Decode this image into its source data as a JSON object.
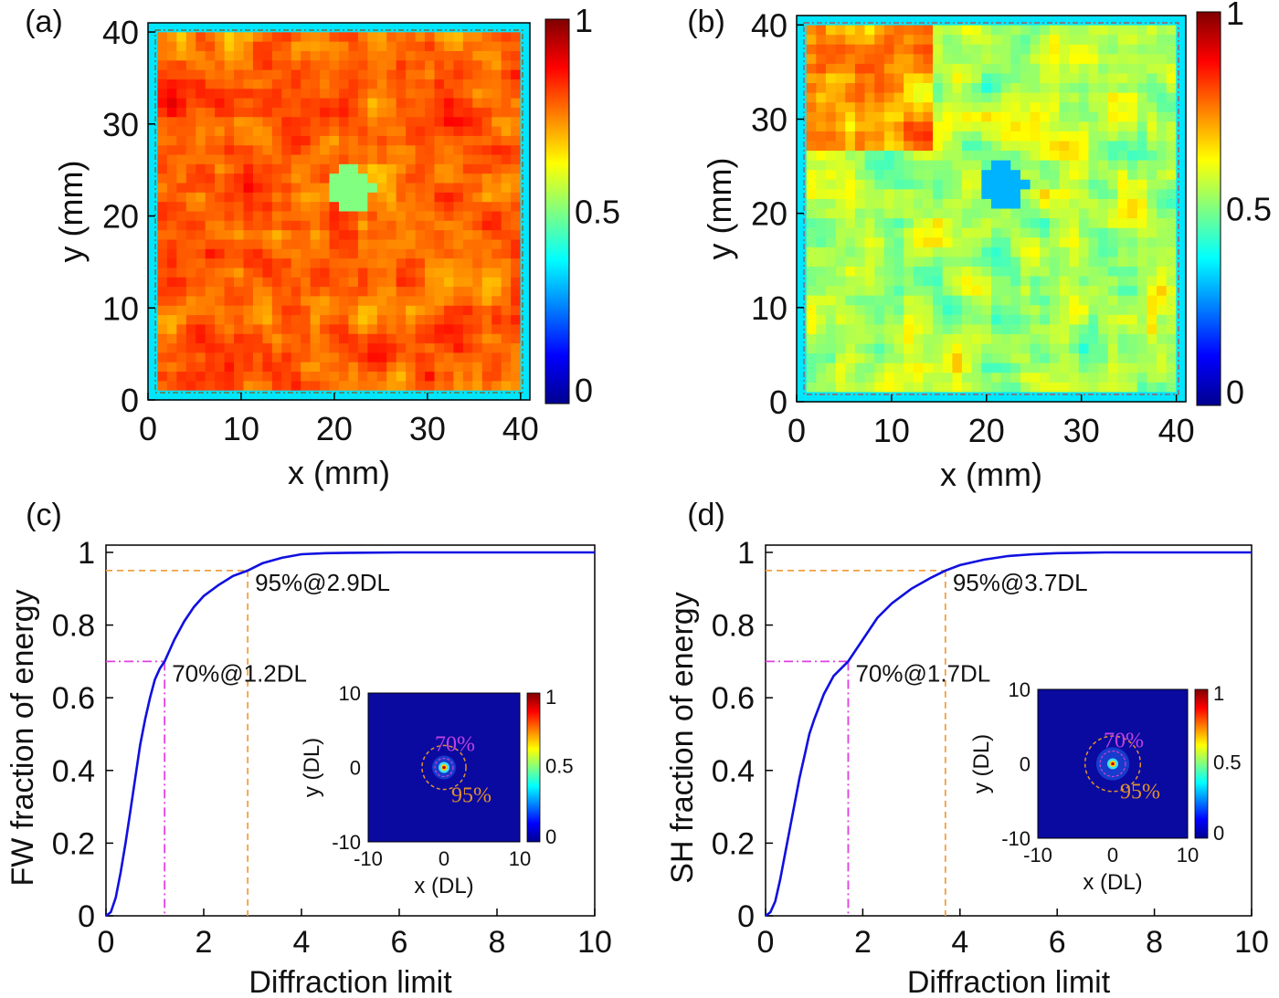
{
  "panels": {
    "a": "(a)",
    "b": "(b)",
    "c": "(c)",
    "d": "(d)"
  },
  "colormap": [
    "#00008f",
    "#0000ff",
    "#0080ff",
    "#00ffff",
    "#80ff80",
    "#ffff00",
    "#ff8000",
    "#ff0000",
    "#800000"
  ],
  "chart_data": [
    {
      "id": "a",
      "type": "heatmap",
      "title": "",
      "xlabel": "x (mm)",
      "ylabel": "y (mm)",
      "xlim": [
        0,
        41
      ],
      "ylim": [
        0,
        41
      ],
      "xticks": [
        "0",
        "10",
        "20",
        "30",
        "40"
      ],
      "yticks": [
        "0",
        "10",
        "20",
        "30",
        "40"
      ],
      "colorbar": {
        "range": [
          0,
          1
        ],
        "ticks": [
          "0",
          "0.5",
          "1"
        ]
      },
      "description_values": {
        "mean_level": 0.78,
        "hot_level": 0.92,
        "dip_level": 0.5
      }
    },
    {
      "id": "b",
      "type": "heatmap",
      "title": "",
      "xlabel": "x (mm)",
      "ylabel": "y (mm)",
      "xlim": [
        0,
        41
      ],
      "ylim": [
        0,
        41
      ],
      "xticks": [
        "0",
        "10",
        "20",
        "30",
        "40"
      ],
      "yticks": [
        "0",
        "10",
        "20",
        "30",
        "40"
      ],
      "colorbar": {
        "range": [
          0,
          1
        ],
        "ticks": [
          "0",
          "0.5",
          "1"
        ]
      },
      "description_values": {
        "mean_level": 0.55,
        "hot_level": 0.85,
        "dip_level": 0.3
      }
    },
    {
      "id": "c",
      "type": "line",
      "xlabel": "Diffraction limit",
      "ylabel": "FW fraction of energy",
      "xlim": [
        0,
        10
      ],
      "ylim": [
        0,
        1.02
      ],
      "xticks": [
        "0",
        "2",
        "4",
        "6",
        "8",
        "10"
      ],
      "yticks": [
        "0",
        "0.2",
        "0.4",
        "0.6",
        "0.8",
        "1"
      ],
      "series": [
        {
          "x": [
            0,
            0.1,
            0.2,
            0.3,
            0.4,
            0.5,
            0.6,
            0.7,
            0.8,
            0.9,
            1.0,
            1.1,
            1.2,
            1.4,
            1.6,
            1.8,
            2.0,
            2.3,
            2.6,
            2.9,
            3.2,
            3.6,
            4.0,
            4.5,
            5.0,
            6.0,
            7.0,
            8.0,
            9.0,
            10.0
          ],
          "y": [
            0,
            0.01,
            0.05,
            0.12,
            0.2,
            0.29,
            0.38,
            0.47,
            0.54,
            0.6,
            0.65,
            0.68,
            0.7,
            0.76,
            0.81,
            0.85,
            0.88,
            0.91,
            0.935,
            0.95,
            0.97,
            0.985,
            0.995,
            0.998,
            0.999,
            1.0,
            1.0,
            1.0,
            1.0,
            1.0
          ]
        }
      ],
      "markers": [
        {
          "label": "95%@2.9DL",
          "x": 2.9,
          "y": 0.95,
          "color": "#f0a040",
          "style": "dashed"
        },
        {
          "label": "70%@1.2DL",
          "x": 1.2,
          "y": 0.7,
          "color": "#e040e0",
          "style": "dashdot"
        }
      ],
      "inset": {
        "type": "heatmap",
        "xlabel": "x (DL)",
        "ylabel": "y (DL)",
        "xticks": [
          "-10",
          "0",
          "10"
        ],
        "yticks": [
          "10",
          "0",
          "-10"
        ],
        "colorbar_ticks": [
          "1",
          "0.5",
          "0"
        ],
        "ring70": "70%",
        "ring95": "95%",
        "r70": 1.2,
        "r95": 2.9
      }
    },
    {
      "id": "d",
      "type": "line",
      "xlabel": "Diffraction limit",
      "ylabel": "SH fraction of energy",
      "xlim": [
        0,
        10
      ],
      "ylim": [
        0,
        1.02
      ],
      "xticks": [
        "0",
        "2",
        "4",
        "6",
        "8",
        "10"
      ],
      "yticks": [
        "0",
        "0.2",
        "0.4",
        "0.6",
        "0.8",
        "1"
      ],
      "series": [
        {
          "x": [
            0,
            0.1,
            0.2,
            0.3,
            0.4,
            0.5,
            0.6,
            0.7,
            0.8,
            0.9,
            1.0,
            1.2,
            1.4,
            1.7,
            2.0,
            2.3,
            2.6,
            3.0,
            3.4,
            3.7,
            4.0,
            4.5,
            5.0,
            5.5,
            6.0,
            7.0,
            8.0,
            9.0,
            10.0
          ],
          "y": [
            0,
            0.01,
            0.04,
            0.1,
            0.17,
            0.24,
            0.31,
            0.38,
            0.44,
            0.5,
            0.54,
            0.61,
            0.66,
            0.7,
            0.76,
            0.82,
            0.86,
            0.9,
            0.93,
            0.95,
            0.965,
            0.98,
            0.99,
            0.995,
            0.998,
            1.0,
            1.0,
            1.0,
            1.0
          ]
        }
      ],
      "markers": [
        {
          "label": "95%@3.7DL",
          "x": 3.7,
          "y": 0.95,
          "color": "#f0a040",
          "style": "dashed"
        },
        {
          "label": "70%@1.7DL",
          "x": 1.7,
          "y": 0.7,
          "color": "#e040e0",
          "style": "dashdot"
        }
      ],
      "inset": {
        "type": "heatmap",
        "xlabel": "x (DL)",
        "ylabel": "y (DL)",
        "xticks": [
          "-10",
          "0",
          "10"
        ],
        "yticks": [
          "10",
          "0",
          "-10"
        ],
        "colorbar_ticks": [
          "1",
          "0.5",
          "0"
        ],
        "ring70": "70%",
        "ring95": "95%",
        "r70": 1.7,
        "r95": 3.7
      }
    }
  ]
}
